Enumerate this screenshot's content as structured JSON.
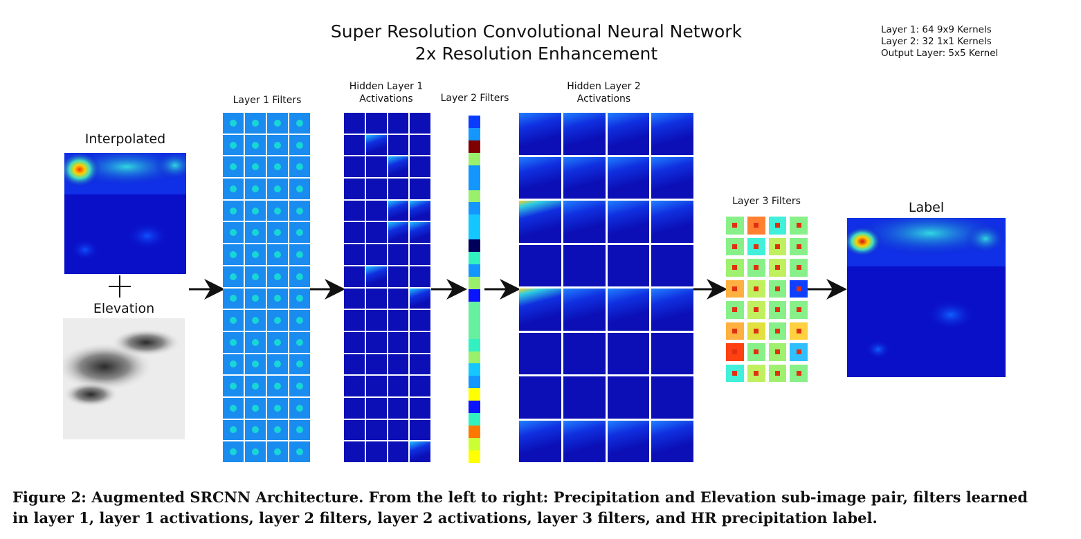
{
  "title": {
    "line1": "Super Resolution Convolutional Neural Network",
    "line2": "2x Resolution Enhancement"
  },
  "legend": [
    "Layer 1: 64 9x9 Kernels",
    "Layer 2: 32 1x1 Kernels",
    "Output Layer: 5x5 Kernel"
  ],
  "panels": {
    "interpolated": "Interpolated",
    "elevation": "Elevation",
    "layer1_filters": "Layer 1 Filters",
    "hidden1_line1": "Hidden Layer 1",
    "hidden1_line2": "Activations",
    "layer2_filters": "Layer 2 Filters",
    "hidden2_line1": "Hidden Layer 2",
    "hidden2_line2": "Activations",
    "layer3_filters": "Layer 3 Filters",
    "label": "Label"
  },
  "layer2_colors": [
    "#0a3cff",
    "#1496ff",
    "#7f0000",
    "#9af06a",
    "#1496ff",
    "#1496ff",
    "#9af06a",
    "#1496ff",
    "#14c8ff",
    "#14c8ff",
    "#00005a",
    "#33f0c0",
    "#1496ff",
    "#9af06a",
    "#0a14ff",
    "#66f0a0",
    "#66f0a0",
    "#66f0a0",
    "#33f0c0",
    "#9af06a",
    "#14c8ff",
    "#1496ff",
    "#ffff00",
    "#0a14ff",
    "#33f0c0",
    "#ff7800",
    "#ccff33",
    "#ffff00"
  ],
  "layer3_colors": [
    "#88f088",
    "#ff8030",
    "#40f0d8",
    "#88f088",
    "#88f088",
    "#40f0d8",
    "#c0f060",
    "#88f088",
    "#a0f070",
    "#88f088",
    "#c0f060",
    "#88f088",
    "#ffb040",
    "#c0f060",
    "#88f088",
    "#1040ff",
    "#88f088",
    "#c0f060",
    "#88f088",
    "#88f088",
    "#ffb040",
    "#e0e040",
    "#88f088",
    "#ffd040",
    "#ff4010",
    "#88f088",
    "#a0f070",
    "#30c0ff",
    "#40f0d8",
    "#c0f060",
    "#a0f070",
    "#88f088"
  ],
  "caption": {
    "line1": "Figure 2: Augmented SRCNN Architecture. From the left to right: Precipitation and Elevation sub-image pair, filters learned",
    "line2": "in layer 1, layer 1 activations, layer 2 filters, layer 2 activations, layer 3 filters, and HR precipitation label."
  }
}
